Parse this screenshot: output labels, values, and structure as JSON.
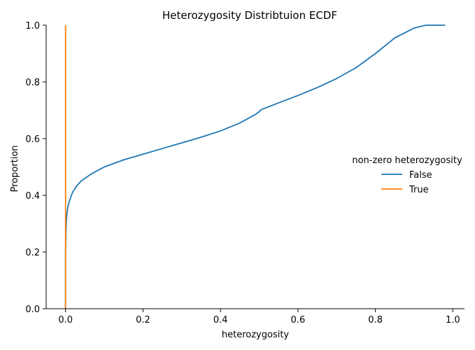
{
  "chart_data": {
    "type": "line",
    "title": "Heterozygosity Distribtuion ECDF",
    "xlabel": "heterozygosity",
    "ylabel": "Proportion",
    "xlim": [
      -0.05,
      1.03
    ],
    "ylim": [
      0.0,
      1.0
    ],
    "xticks": [
      "0.0",
      "0.2",
      "0.4",
      "0.6",
      "0.8",
      "1.0"
    ],
    "xtick_values": [
      0.0,
      0.2,
      0.4,
      0.6,
      0.8,
      1.0
    ],
    "yticks": [
      "0.0",
      "0.2",
      "0.4",
      "0.6",
      "0.8",
      "1.0"
    ],
    "ytick_values": [
      0.0,
      0.2,
      0.4,
      0.6,
      0.8,
      1.0
    ],
    "grid": false,
    "legend": {
      "title": "non-zero heterozygosity",
      "placement": "center-right"
    },
    "series": [
      {
        "name": "False",
        "color": "#1f77b4",
        "x": [
          0.0,
          0.0,
          0.001,
          0.002,
          0.004,
          0.006,
          0.01,
          0.015,
          0.02,
          0.03,
          0.04,
          0.05,
          0.07,
          0.1,
          0.15,
          0.2,
          0.25,
          0.3,
          0.35,
          0.4,
          0.45,
          0.49,
          0.5,
          0.505,
          0.55,
          0.6,
          0.65,
          0.7,
          0.75,
          0.8,
          0.85,
          0.9,
          0.93,
          0.95,
          0.98
        ],
        "y": [
          0.0,
          0.2,
          0.27,
          0.31,
          0.34,
          0.36,
          0.38,
          0.4,
          0.415,
          0.435,
          0.45,
          0.46,
          0.478,
          0.5,
          0.525,
          0.545,
          0.565,
          0.585,
          0.605,
          0.627,
          0.655,
          0.685,
          0.695,
          0.702,
          0.726,
          0.752,
          0.78,
          0.812,
          0.85,
          0.9,
          0.955,
          0.99,
          1.0,
          1.0,
          1.0
        ]
      },
      {
        "name": "True",
        "color": "#ff7f0e",
        "x": [
          0.0,
          0.0
        ],
        "y": [
          0.0,
          1.0
        ]
      }
    ]
  }
}
